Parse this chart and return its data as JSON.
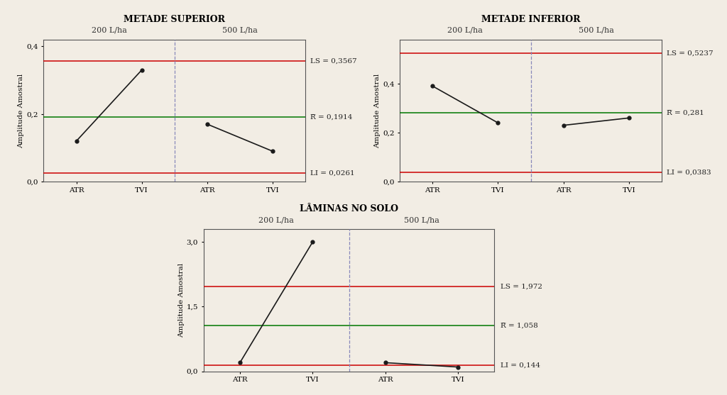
{
  "charts": [
    {
      "title": "METADE SUPERIOR",
      "ylabel": "Amplitude Amostral",
      "xlabels": [
        "ATR",
        "TVI",
        "ATR",
        "TVI"
      ],
      "group_labels": [
        "200 L/ha",
        "500 L/ha"
      ],
      "line_data": [
        [
          0.12,
          0.33
        ],
        [
          0.17,
          0.09
        ]
      ],
      "LS": 0.3567,
      "R_bar": 0.1914,
      "LI": 0.0261,
      "LS_label": "LS = 0,3567",
      "R_label": "R̅ = 0,1914",
      "LI_label": "LI = 0,0261",
      "ylim": [
        0.0,
        0.42
      ],
      "yticks": [
        0.0,
        0.2,
        0.4
      ],
      "yticklabels": [
        "0,0",
        "0,2",
        "0,4"
      ]
    },
    {
      "title": "METADE INFERIOR",
      "ylabel": "Amplitude Amostral",
      "xlabels": [
        "ATR",
        "TVI",
        "ATR",
        "TVI"
      ],
      "group_labels": [
        "200 L/ha",
        "500 L/ha"
      ],
      "line_data": [
        [
          0.39,
          0.24
        ],
        [
          0.23,
          0.26
        ]
      ],
      "LS": 0.5237,
      "R_bar": 0.281,
      "LI": 0.0383,
      "LS_label": "LS = 0,5237",
      "R_label": "R̅ = 0,281",
      "LI_label": "LI = 0,0383",
      "ylim": [
        0.0,
        0.58
      ],
      "yticks": [
        0.0,
        0.2,
        0.4
      ],
      "yticklabels": [
        "0,0",
        "0,2",
        "0,4"
      ]
    },
    {
      "title": "LÂMINAS NO SOLO",
      "ylabel": "Amplitude Amostral",
      "xlabels": [
        "ATR",
        "TVI",
        "ATR",
        "TVI"
      ],
      "group_labels": [
        "200 L/ha",
        "500 L/ha"
      ],
      "line_data": [
        [
          0.2,
          3.0
        ],
        [
          0.2,
          0.1
        ]
      ],
      "LS": 1.972,
      "R_bar": 1.058,
      "LI": 0.144,
      "LS_label": "LS = 1,972",
      "R_label": "R̅ = 1,058",
      "LI_label": "LI = 0,144",
      "ylim": [
        0.0,
        3.3
      ],
      "yticks": [
        0.0,
        1.5,
        3.0
      ],
      "yticklabels": [
        "0,0",
        "1,5",
        "3,0"
      ]
    }
  ],
  "bg_color": "#f2ede4",
  "plot_bg": "#f2ede4",
  "line_color": "#1a1a1a",
  "LS_color": "#cc0000",
  "R_color": "#007700",
  "LI_color": "#cc0000",
  "divider_color": "#8888bb",
  "title_fontsize": 9,
  "label_fontsize": 7.5,
  "tick_fontsize": 7.5,
  "annotation_fontsize": 7.5,
  "group_label_fontsize": 8
}
